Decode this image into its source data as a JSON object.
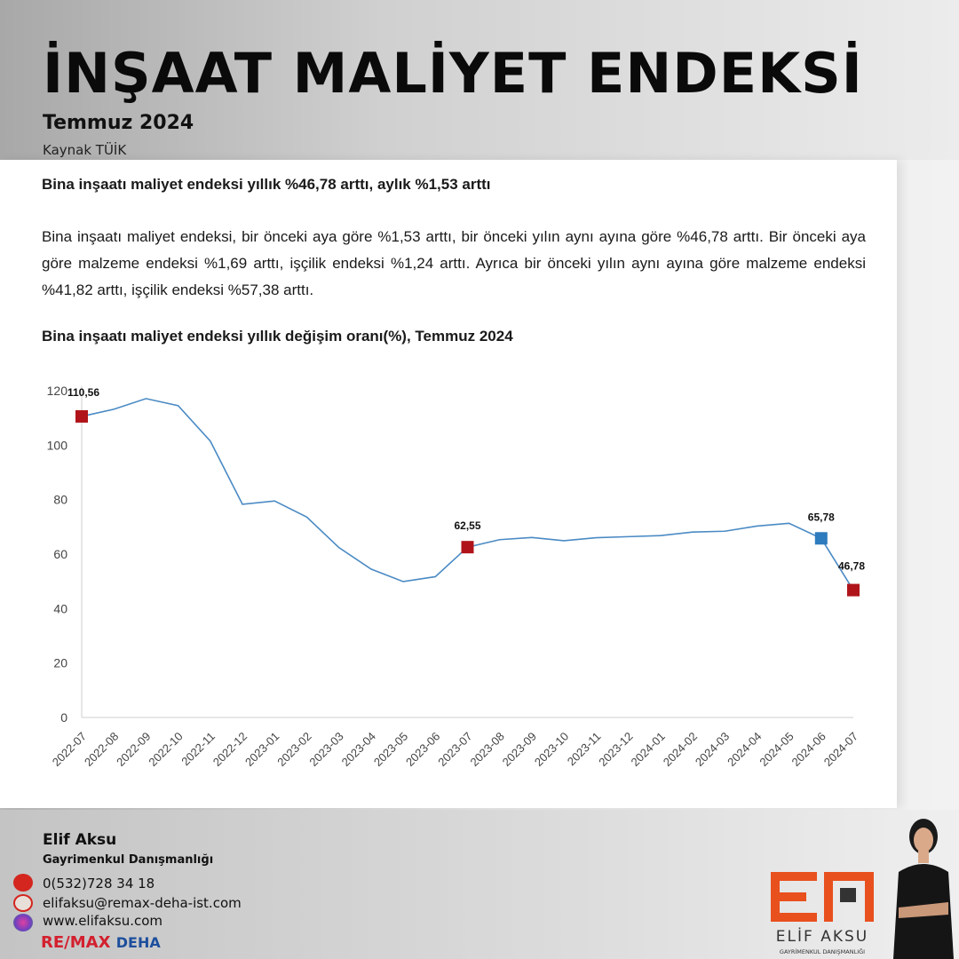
{
  "header": {
    "title": "İNŞAAT MALİYET ENDEKSİ",
    "subtitle": "Temmuz 2024",
    "source": "Kaynak TÜİK"
  },
  "content": {
    "headline": "Bina inşaatı maliyet endeksi yıllık %46,78 arttı, aylık %1,53 arttı",
    "paragraph": "Bina inşaatı maliyet endeksi, bir önceki aya göre %1,53 arttı, bir önceki yılın aynı ayına göre %46,78 arttı. Bir önceki aya göre malzeme endeksi %1,69 arttı, işçilik endeksi %1,24 arttı. Ayrıca bir önceki yılın aynı ayına göre malzeme endeksi %41,82 arttı, işçilik endeksi %57,38 arttı.",
    "chart_heading": "Bina inşaatı maliyet endeksi yıllık değişim oranı(%), Temmuz 2024"
  },
  "chart_data": {
    "type": "line",
    "title": "",
    "xlabel": "",
    "ylabel": "",
    "ylim": [
      0,
      120
    ],
    "yticks": [
      "0",
      "20",
      "40",
      "60",
      "80",
      "100",
      "120"
    ],
    "grid": false,
    "categories": [
      "2022-07",
      "2022-08",
      "2022-09",
      "2022-10",
      "2022-11",
      "2022-12",
      "2023-01",
      "2023-02",
      "2023-03",
      "2023-04",
      "2023-05",
      "2023-06",
      "2023-07",
      "2023-08",
      "2023-09",
      "2023-10",
      "2023-11",
      "2023-12",
      "2024-01",
      "2024-02",
      "2024-03",
      "2024-04",
      "2024-05",
      "2024-06",
      "2024-07"
    ],
    "values": [
      110.56,
      113.2,
      117.1,
      114.5,
      101.5,
      78.3,
      79.5,
      73.6,
      62.4,
      54.5,
      49.9,
      51.7,
      62.55,
      65.3,
      66.1,
      64.9,
      66.0,
      66.4,
      66.8,
      68.1,
      68.4,
      70.3,
      71.3,
      65.78,
      46.78
    ],
    "line_color": "#4a8ac4",
    "highlights": [
      {
        "index": 0,
        "label": "110,56",
        "color": "#b0141a"
      },
      {
        "index": 12,
        "label": "62,55",
        "color": "#b0141a"
      },
      {
        "index": 23,
        "label": "65,78",
        "color": "#2e7bbd"
      },
      {
        "index": 24,
        "label": "46,78",
        "color": "#b0141a"
      }
    ]
  },
  "footer": {
    "name": "Elif Aksu",
    "role": "Gayrimenkul Danışmanlığı",
    "phone": "0(532)728 34 18",
    "email": "elifaksu@remax-deha-ist.com",
    "website": "www.elifaksu.com",
    "brand_remax": "RE/MAX",
    "brand_deha": "DEHA",
    "logo_text": "ELİF AKSU",
    "logo_sub": "GAYRİMENKUL DANIŞMANLIĞI",
    "icons": [
      "phone-icon",
      "email-icon",
      "globe-icon"
    ]
  }
}
